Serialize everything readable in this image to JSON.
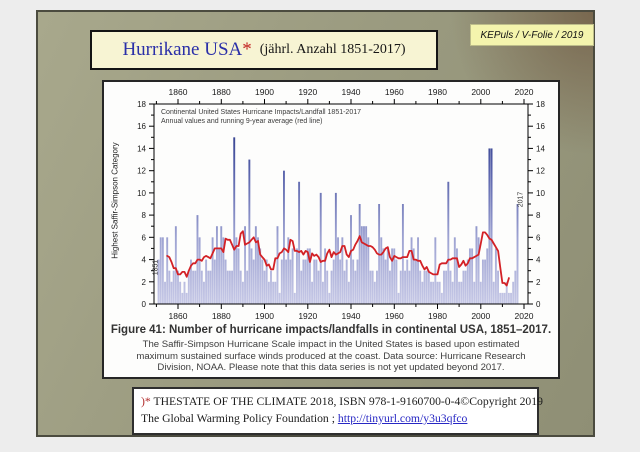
{
  "slide": {
    "title": {
      "main": "Hurrikane USA",
      "asterisk": "*",
      "subtitle": "(jährl. Anzahl 1851-2017)"
    },
    "badge": "KEPuls / V-Folie / 2019",
    "footnote": {
      "marker": ")*",
      "line1": " THESTATE OF THE CLIMATE 2018, ISBN 978-1-9160700-0-4©Copyright 2019",
      "line2_prefix": "The Global Warming Policy Foundation ; ",
      "link": "http://tinyurl.com/y3u3qfco"
    }
  },
  "figure": {
    "inner_title_line1": "Continental United States Hurricane Impacts/Landfall 1851-2017",
    "inner_title_line2": "Annual values and running 9-year average (red line)",
    "ylabel": "Highest Saffir-Simpson Category",
    "annotation_start": "1851",
    "annotation_end": "2017",
    "caption_title": "Figure 41: Number of hurricane impacts/landfalls in continental USA, 1851–2017.",
    "caption_body": "The Saffir-Simpson Hurricane Scale impact in the United States is based upon estimated maximum sustained surface winds produced at the coast. Data source: Hurricane Research Division, NOAA. Please note that this data series is not yet updated beyond 2017."
  },
  "chart_data": {
    "type": "bar",
    "title": "Continental United States Hurricane Impacts/Landfall 1851-2017",
    "subtitle": "Annual values and running 9-year average (red line)",
    "ylabel": "Highest Saffir-Simpson Category",
    "x_start_year": 1851,
    "x_end_year": 2017,
    "values": [
      4,
      6,
      6,
      2,
      6,
      3,
      2,
      3,
      7,
      3,
      2,
      1,
      2,
      1,
      3,
      4,
      3,
      3,
      8,
      6,
      3,
      2,
      4,
      3,
      3,
      6,
      4,
      7,
      5,
      7,
      6,
      4,
      3,
      3,
      3,
      15,
      6,
      5,
      3,
      2,
      7,
      3,
      13,
      5,
      4,
      7,
      6,
      5,
      4,
      3,
      4,
      2,
      3,
      2,
      2,
      7,
      1,
      4,
      12,
      4,
      6,
      4,
      5,
      1,
      5,
      11,
      3,
      4,
      4,
      5,
      5,
      2,
      4,
      4,
      3,
      10,
      2,
      5,
      3,
      1,
      3,
      4,
      10,
      6,
      4,
      6,
      3,
      4,
      2,
      8,
      4,
      3,
      4,
      9,
      7,
      7,
      7,
      6,
      3,
      3,
      2,
      3,
      9,
      6,
      5,
      4,
      5,
      3,
      5,
      5,
      4,
      1,
      3,
      9,
      3,
      4,
      3,
      6,
      5,
      4,
      6,
      3,
      2,
      3,
      3,
      3,
      2,
      2,
      6,
      2,
      2,
      1,
      3,
      3,
      11,
      3,
      2,
      6,
      5,
      2,
      2,
      3,
      3,
      4,
      5,
      5,
      2,
      7,
      6,
      2,
      4,
      4,
      5,
      14,
      14,
      2,
      5,
      3,
      1,
      1,
      1,
      2,
      1,
      1,
      2,
      3,
      9
    ],
    "running_average_window": 9,
    "x_ticks": [
      1860,
      1880,
      1900,
      1920,
      1940,
      1960,
      1980,
      2000,
      2020
    ],
    "y_ticks": [
      0,
      2,
      4,
      6,
      8,
      10,
      12,
      14,
      16,
      18
    ],
    "ylim": [
      0,
      18
    ],
    "xlim": [
      1849,
      2022
    ],
    "grid": "off",
    "legend": "none",
    "colors": {
      "bar_bottom": "#c6c8e6",
      "bar_top": "#1c2a7c",
      "line": "#d32126"
    }
  }
}
